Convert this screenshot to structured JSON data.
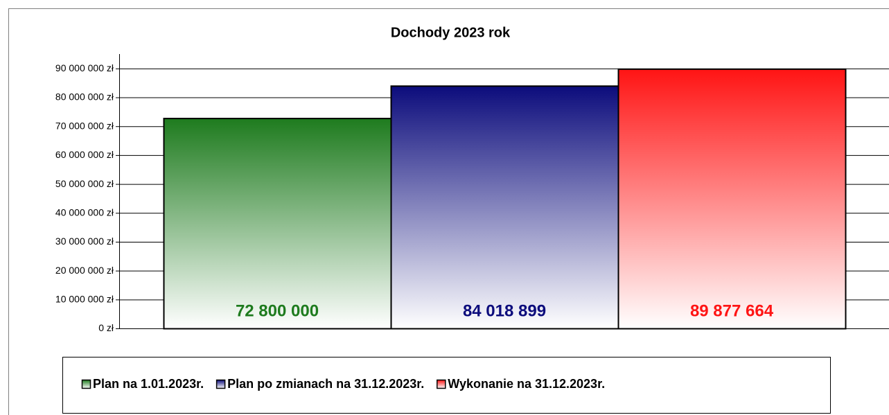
{
  "chart_data": {
    "type": "bar",
    "title": "Dochody 2023 rok",
    "categories": [
      null
    ],
    "series": [
      {
        "name": "Plan na 1.01.2023r.",
        "color": "#1e7b1e",
        "values": [
          72800000
        ],
        "value_labels": [
          "72 800 000"
        ]
      },
      {
        "name": "Plan po zmianach na 31.12.2023r.",
        "color": "#0c0c7c",
        "values": [
          84018899
        ],
        "value_labels": [
          "84 018 899"
        ]
      },
      {
        "name": "Wykonanie na 31.12.2023r.",
        "color": "#ff1414",
        "values": [
          89877664
        ],
        "value_labels": [
          "89 877 664"
        ]
      }
    ],
    "ylim": [
      0,
      95000000
    ],
    "yticks": [
      {
        "value": 0,
        "label": "0 zł"
      },
      {
        "value": 10000000,
        "label": "10 000 000 zł"
      },
      {
        "value": 20000000,
        "label": "20 000 000 zł"
      },
      {
        "value": 30000000,
        "label": "30 000 000 zł"
      },
      {
        "value": 40000000,
        "label": "40 000 000 zł"
      },
      {
        "value": 50000000,
        "label": "50 000 000 zł"
      },
      {
        "value": 60000000,
        "label": "60 000 000 zł"
      },
      {
        "value": 70000000,
        "label": "70 000 000 zł"
      },
      {
        "value": 80000000,
        "label": "80 000 000 zł"
      },
      {
        "value": 90000000,
        "label": "90 000 000 zł"
      }
    ],
    "grid": true,
    "legend": "bottom"
  }
}
